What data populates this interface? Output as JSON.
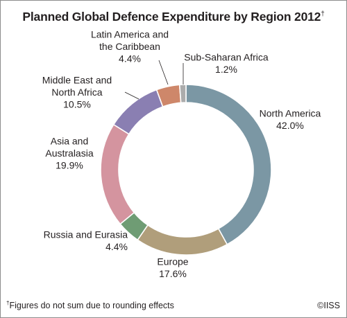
{
  "chart_data": {
    "type": "pie",
    "style": "donut",
    "title": "Planned Global Defence Expenditure by Region 2012",
    "title_mark": "†",
    "slices": [
      {
        "label": [
          "North America"
        ],
        "value": 42.0,
        "display": "42.0%",
        "color": "#7b97a4"
      },
      {
        "label": [
          "Europe"
        ],
        "value": 17.6,
        "display": "17.6%",
        "color": "#b09e7b"
      },
      {
        "label": [
          "Russia and Eurasia"
        ],
        "value": 4.4,
        "display": "4.4%",
        "color": "#6f9c74"
      },
      {
        "label": [
          "Asia and",
          "Australasia"
        ],
        "value": 19.9,
        "display": "19.9%",
        "color": "#d4949f"
      },
      {
        "label": [
          "Middle East and",
          "North Africa"
        ],
        "value": 10.5,
        "display": "10.5%",
        "color": "#8a7fb2"
      },
      {
        "label": [
          "Latin America and",
          "the Caribbean"
        ],
        "value": 4.4,
        "display": "4.4%",
        "color": "#ce876a"
      },
      {
        "label": [
          "Sub-Saharan Africa"
        ],
        "value": 1.2,
        "display": "1.2%",
        "color": "#acacac"
      }
    ],
    "start_angle_deg": 0,
    "direction": "clockwise",
    "legend": "none"
  },
  "footnote": {
    "mark": "†",
    "text": "Figures do not sum due to rounding effects"
  },
  "copyright": "©IISS"
}
